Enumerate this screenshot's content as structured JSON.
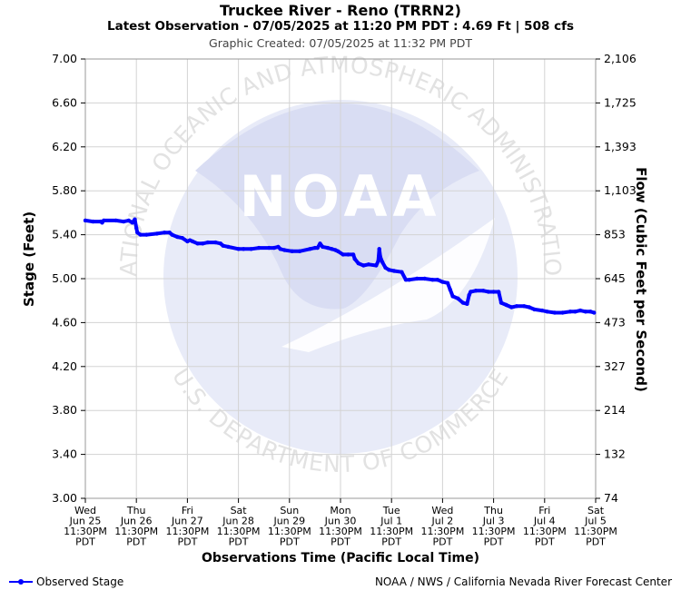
{
  "header": {
    "title": "Truckee River - Reno (TRRN2)",
    "subtitle": "Latest Observation - 07/05/2025 at 11:20 PM PDT : 4.69 Ft | 508 cfs",
    "created": "Graphic Created: 07/05/2025 at 11:32 PM PDT"
  },
  "watermark": {
    "logo_text": "NOAA",
    "ring_top": "NATIONAL OCEANIC AND ATMOSPHERIC ADMINISTRATION",
    "ring_bottom": "U.S. DEPARTMENT OF COMMERCE"
  },
  "footer": {
    "legend_label": "Observed Stage",
    "credit": "NOAA / NWS / California Nevada River Forecast Center"
  },
  "colors": {
    "series": "#0000ff",
    "grid": "#d3d3d3",
    "watermark": "#e8ebf8"
  },
  "chart_data": {
    "type": "line",
    "xlabel": "Observations Time (Pacific Local Time)",
    "ylabel": "Stage (Feet)",
    "ylabel_right": "Flow (Cubic Feet per Second)",
    "ylim": [
      3.0,
      7.0
    ],
    "grid": true,
    "legend": "bottom-left",
    "y_ticks": [
      "3.00",
      "3.40",
      "3.80",
      "4.20",
      "4.60",
      "5.00",
      "5.40",
      "5.80",
      "6.20",
      "6.60",
      "7.00"
    ],
    "y_right_ticks": [
      "74",
      "132",
      "214",
      "327",
      "473",
      "645",
      "853",
      "1,103",
      "1,393",
      "1,725",
      "2,106"
    ],
    "x_ticks": [
      {
        "day": "Wed",
        "date": "Jun 25",
        "time": "11:30PM",
        "tz": "PDT"
      },
      {
        "day": "Thu",
        "date": "Jun 26",
        "time": "11:30PM",
        "tz": "PDT"
      },
      {
        "day": "Fri",
        "date": "Jun 27",
        "time": "11:30PM",
        "tz": "PDT"
      },
      {
        "day": "Sat",
        "date": "Jun 28",
        "time": "11:30PM",
        "tz": "PDT"
      },
      {
        "day": "Sun",
        "date": "Jun 29",
        "time": "11:30PM",
        "tz": "PDT"
      },
      {
        "day": "Mon",
        "date": "Jun 30",
        "time": "11:30PM",
        "tz": "PDT"
      },
      {
        "day": "Tue",
        "date": "Jul 1",
        "time": "11:30PM",
        "tz": "PDT"
      },
      {
        "day": "Wed",
        "date": "Jul 2",
        "time": "11:30PM",
        "tz": "PDT"
      },
      {
        "day": "Thu",
        "date": "Jul 3",
        "time": "11:30PM",
        "tz": "PDT"
      },
      {
        "day": "Fri",
        "date": "Jul 4",
        "time": "11:30PM",
        "tz": "PDT"
      },
      {
        "day": "Sat",
        "date": "Jul 5",
        "time": "11:30PM",
        "tz": "PDT"
      }
    ],
    "series": [
      {
        "name": "Observed Stage",
        "points": [
          [
            0.0,
            5.53
          ],
          [
            0.15,
            5.52
          ],
          [
            0.3,
            5.52
          ],
          [
            0.33,
            5.51
          ],
          [
            0.36,
            5.53
          ],
          [
            0.6,
            5.53
          ],
          [
            0.75,
            5.52
          ],
          [
            0.85,
            5.53
          ],
          [
            0.92,
            5.51
          ],
          [
            0.97,
            5.54
          ],
          [
            1.0,
            5.46
          ],
          [
            1.02,
            5.42
          ],
          [
            1.08,
            5.4
          ],
          [
            1.2,
            5.4
          ],
          [
            1.4,
            5.41
          ],
          [
            1.55,
            5.42
          ],
          [
            1.65,
            5.42
          ],
          [
            1.7,
            5.4
          ],
          [
            1.8,
            5.38
          ],
          [
            1.9,
            5.37
          ],
          [
            2.0,
            5.34
          ],
          [
            2.05,
            5.35
          ],
          [
            2.1,
            5.34
          ],
          [
            2.2,
            5.32
          ],
          [
            2.3,
            5.32
          ],
          [
            2.4,
            5.33
          ],
          [
            2.55,
            5.33
          ],
          [
            2.65,
            5.32
          ],
          [
            2.7,
            5.3
          ],
          [
            2.8,
            5.29
          ],
          [
            3.0,
            5.27
          ],
          [
            3.1,
            5.27
          ],
          [
            3.25,
            5.27
          ],
          [
            3.4,
            5.28
          ],
          [
            3.6,
            5.28
          ],
          [
            3.7,
            5.28
          ],
          [
            3.78,
            5.29
          ],
          [
            3.82,
            5.27
          ],
          [
            3.9,
            5.26
          ],
          [
            4.05,
            5.25
          ],
          [
            4.2,
            5.25
          ],
          [
            4.4,
            5.27
          ],
          [
            4.5,
            5.28
          ],
          [
            4.55,
            5.28
          ],
          [
            4.6,
            5.32
          ],
          [
            4.65,
            5.29
          ],
          [
            4.75,
            5.28
          ],
          [
            4.83,
            5.27
          ],
          [
            4.9,
            5.26
          ],
          [
            4.95,
            5.25
          ],
          [
            5.05,
            5.22
          ],
          [
            5.15,
            5.22
          ],
          [
            5.25,
            5.22
          ],
          [
            5.28,
            5.18
          ],
          [
            5.35,
            5.14
          ],
          [
            5.45,
            5.12
          ],
          [
            5.55,
            5.13
          ],
          [
            5.7,
            5.12
          ],
          [
            5.74,
            5.16
          ],
          [
            5.76,
            5.27
          ],
          [
            5.78,
            5.2
          ],
          [
            5.82,
            5.15
          ],
          [
            5.88,
            5.1
          ],
          [
            5.95,
            5.08
          ],
          [
            6.05,
            5.07
          ],
          [
            6.2,
            5.06
          ],
          [
            6.28,
            4.99
          ],
          [
            6.35,
            4.99
          ],
          [
            6.5,
            5.0
          ],
          [
            6.65,
            5.0
          ],
          [
            6.8,
            4.99
          ],
          [
            6.9,
            4.99
          ],
          [
            7.0,
            4.97
          ],
          [
            7.1,
            4.96
          ],
          [
            7.15,
            4.9
          ],
          [
            7.2,
            4.84
          ],
          [
            7.3,
            4.82
          ],
          [
            7.4,
            4.78
          ],
          [
            7.48,
            4.77
          ],
          [
            7.52,
            4.85
          ],
          [
            7.55,
            4.88
          ],
          [
            7.65,
            4.89
          ],
          [
            7.8,
            4.89
          ],
          [
            7.9,
            4.88
          ],
          [
            8.0,
            4.88
          ],
          [
            8.1,
            4.88
          ],
          [
            8.15,
            4.78
          ],
          [
            8.25,
            4.76
          ],
          [
            8.35,
            4.74
          ],
          [
            8.45,
            4.75
          ],
          [
            8.6,
            4.75
          ],
          [
            8.7,
            4.74
          ],
          [
            8.8,
            4.72
          ],
          [
            8.95,
            4.71
          ],
          [
            9.05,
            4.7
          ],
          [
            9.2,
            4.69
          ],
          [
            9.35,
            4.69
          ],
          [
            9.5,
            4.7
          ],
          [
            9.6,
            4.7
          ],
          [
            9.7,
            4.71
          ],
          [
            9.8,
            4.7
          ],
          [
            9.9,
            4.7
          ],
          [
            9.97,
            4.69
          ]
        ]
      }
    ]
  }
}
